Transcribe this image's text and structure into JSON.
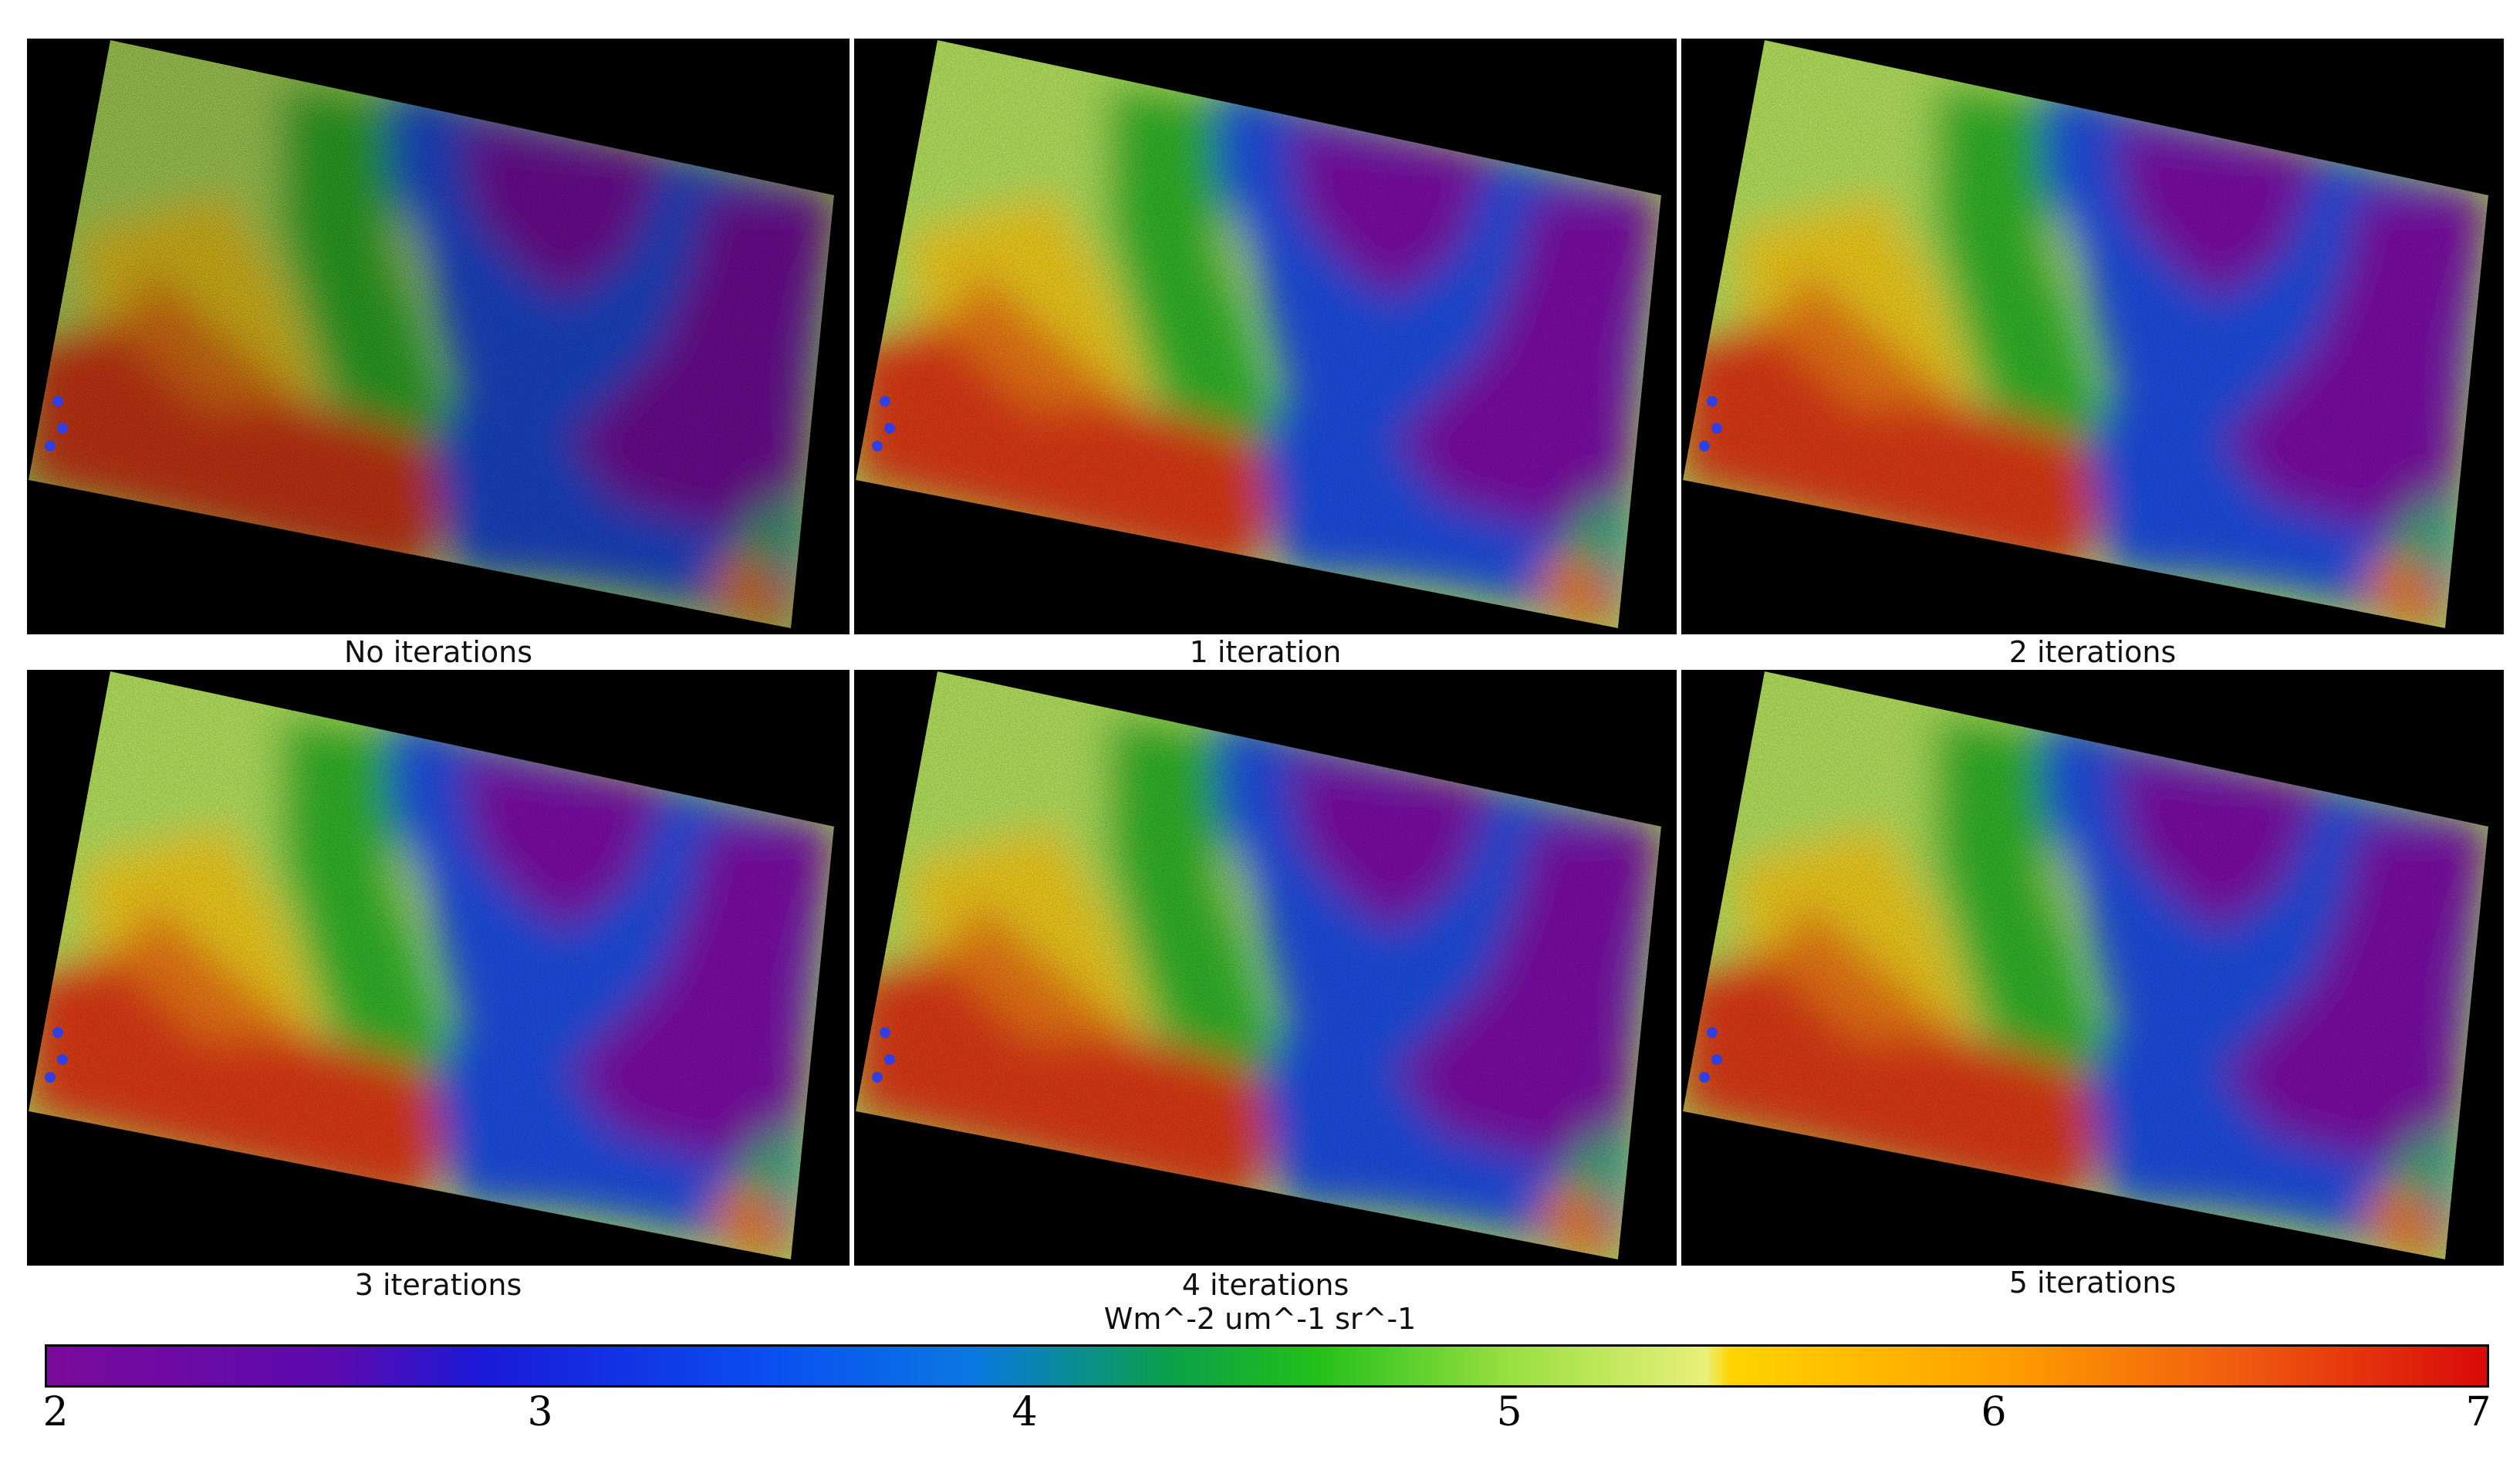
{
  "figure": {
    "panels": [
      {
        "id": "p0",
        "caption": "No iterations",
        "noisy": true
      },
      {
        "id": "p1",
        "caption": "1 iteration",
        "noisy": false
      },
      {
        "id": "p2",
        "caption": "2 iterations",
        "noisy": false
      },
      {
        "id": "p3",
        "caption": "3 iterations",
        "noisy": false
      },
      {
        "id": "p4",
        "caption": "4 iterations",
        "noisy": false
      },
      {
        "id": "p5",
        "caption": "5 iterations",
        "noisy": false
      }
    ],
    "colorbar": {
      "unit_label": "Wm^-2 um^-1 sr^-1",
      "min": 2,
      "max": 7,
      "ticks": [
        "2",
        "3",
        "4",
        "5",
        "6",
        "7"
      ],
      "tick_values": [
        2,
        3,
        4,
        5,
        6,
        7
      ],
      "stops": [
        {
          "value": 2.0,
          "color": "#7a0a9a"
        },
        {
          "value": 2.6,
          "color": "#5a0ab0"
        },
        {
          "value": 2.9,
          "color": "#1a1ad8"
        },
        {
          "value": 3.5,
          "color": "#0a50f0"
        },
        {
          "value": 3.9,
          "color": "#0a78e0"
        },
        {
          "value": 4.3,
          "color": "#0aa04a"
        },
        {
          "value": 4.6,
          "color": "#22c01a"
        },
        {
          "value": 5.0,
          "color": "#9ae040"
        },
        {
          "value": 5.4,
          "color": "#e8f07a"
        },
        {
          "value": 5.45,
          "color": "#ffd400"
        },
        {
          "value": 6.0,
          "color": "#ffa000"
        },
        {
          "value": 6.5,
          "color": "#f05a10"
        },
        {
          "value": 7.0,
          "color": "#d80a0a"
        }
      ]
    },
    "colors": {
      "purple": "#7e10a8",
      "blue": "#1a50e6",
      "deep_blue": "#1030d8",
      "green": "#30b82a",
      "light_green": "#b8e860",
      "yellow": "#f6d21a",
      "orange": "#f07a12",
      "red": "#e23a12"
    }
  }
}
